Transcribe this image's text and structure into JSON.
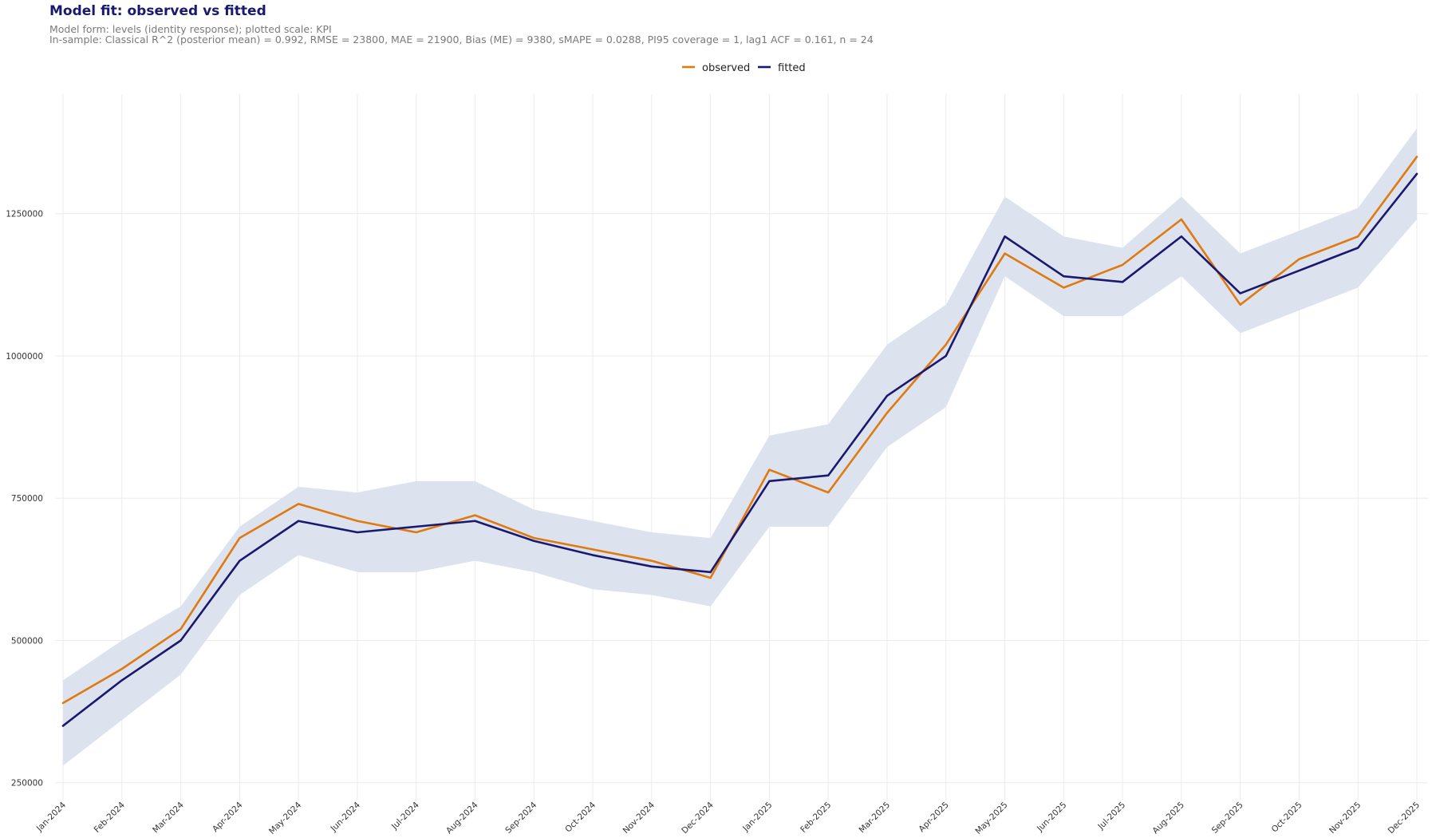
{
  "chart_data": {
    "type": "line",
    "title": "Model fit: observed vs fitted",
    "subtitle_lines": [
      "Model form: levels (identity response); plotted scale: KPI",
      "In-sample: Classical R^2 (posterior mean) = 0.992, RMSE = 23800, MAE = 21900, Bias (ME) = 9380, sMAPE = 0.0288, PI95 coverage = 1, lag1 ACF = 0.161, n = 24"
    ],
    "xlabel": "",
    "ylabel": "",
    "categories": [
      "Jan-2024",
      "Feb-2024",
      "Mar-2024",
      "Apr-2024",
      "May-2024",
      "Jun-2024",
      "Jul-2024",
      "Aug-2024",
      "Sep-2024",
      "Oct-2024",
      "Nov-2024",
      "Dec-2024",
      "Jan-2025",
      "Feb-2025",
      "Mar-2025",
      "Apr-2025",
      "May-2025",
      "Jun-2025",
      "Jul-2025",
      "Aug-2025",
      "Sep-2025",
      "Oct-2025",
      "Nov-2025",
      "Dec-2025"
    ],
    "yticks": [
      250000,
      500000,
      750000,
      1000000,
      1250000
    ],
    "ylim": [
      230000,
      1460000
    ],
    "grid": true,
    "legend_position": "top-center",
    "series": [
      {
        "name": "observed",
        "color": "#e07a10",
        "values": [
          390000,
          450000,
          520000,
          680000,
          740000,
          710000,
          690000,
          720000,
          680000,
          660000,
          640000,
          610000,
          800000,
          760000,
          900000,
          1020000,
          1180000,
          1120000,
          1160000,
          1240000,
          1090000,
          1170000,
          1210000,
          1350000
        ]
      },
      {
        "name": "fitted",
        "color": "#191970",
        "values": [
          350000,
          430000,
          500000,
          640000,
          710000,
          690000,
          700000,
          710000,
          675000,
          650000,
          630000,
          620000,
          780000,
          790000,
          930000,
          1000000,
          1210000,
          1140000,
          1130000,
          1210000,
          1110000,
          1150000,
          1190000,
          1320000
        ]
      }
    ],
    "interval_band": {
      "color": "#dce3ee",
      "lower": [
        280000,
        360000,
        440000,
        580000,
        650000,
        620000,
        620000,
        640000,
        620000,
        590000,
        580000,
        560000,
        700000,
        700000,
        840000,
        910000,
        1140000,
        1070000,
        1070000,
        1140000,
        1040000,
        1080000,
        1120000,
        1240000
      ],
      "upper": [
        430000,
        500000,
        560000,
        700000,
        770000,
        760000,
        780000,
        780000,
        730000,
        710000,
        690000,
        680000,
        860000,
        880000,
        1020000,
        1090000,
        1280000,
        1210000,
        1190000,
        1280000,
        1180000,
        1220000,
        1260000,
        1400000
      ]
    }
  }
}
